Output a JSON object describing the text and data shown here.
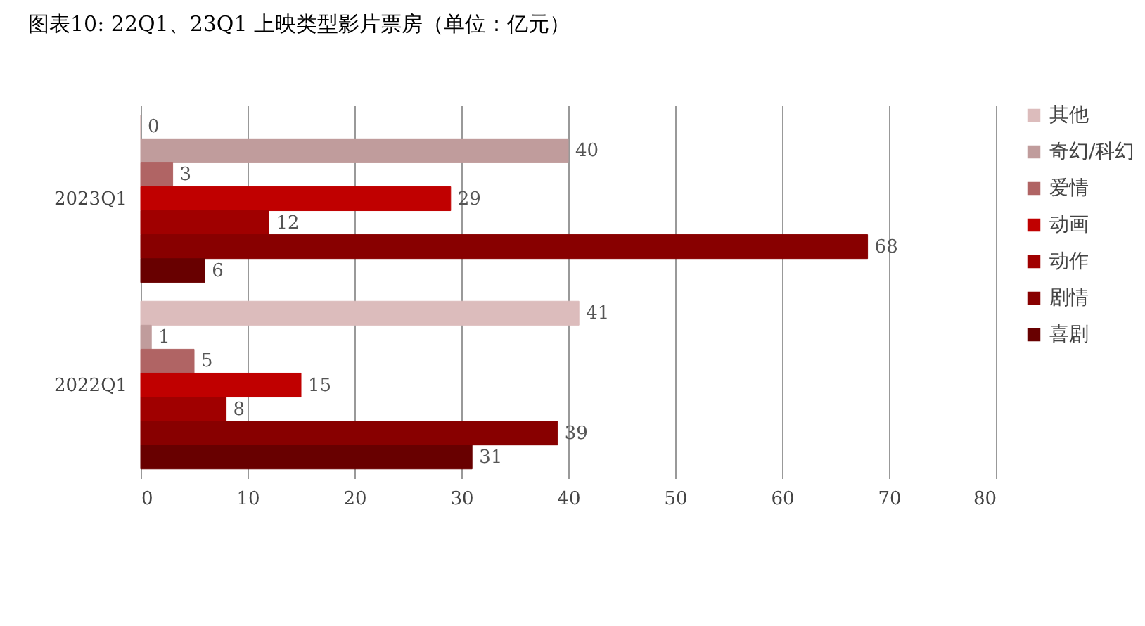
{
  "chart_data": {
    "type": "bar",
    "orientation": "horizontal",
    "title": "图表10:  22Q1、23Q1 上映类型影片票房（单位：亿元）",
    "categories": [
      "2023Q1",
      "2022Q1"
    ],
    "series": [
      {
        "name": "其他",
        "color": "#dcbcbc",
        "values": [
          0,
          41
        ]
      },
      {
        "name": "奇幻/科幻",
        "color": "#c09c9c",
        "values": [
          40,
          1
        ]
      },
      {
        "name": "爱情",
        "color": "#b06464",
        "values": [
          3,
          5
        ]
      },
      {
        "name": "动画",
        "color": "#c00000",
        "values": [
          29,
          15
        ]
      },
      {
        "name": "动作",
        "color": "#a00000",
        "values": [
          12,
          8
        ]
      },
      {
        "name": "剧情",
        "color": "#880000",
        "values": [
          68,
          39
        ]
      },
      {
        "name": "喜剧",
        "color": "#680000",
        "values": [
          6,
          31
        ]
      }
    ],
    "xlim": [
      0,
      80
    ],
    "xticks": [
      0,
      10,
      20,
      30,
      40,
      50,
      60,
      70,
      80
    ],
    "grid": "x",
    "legend": "right",
    "data_labels": true
  }
}
